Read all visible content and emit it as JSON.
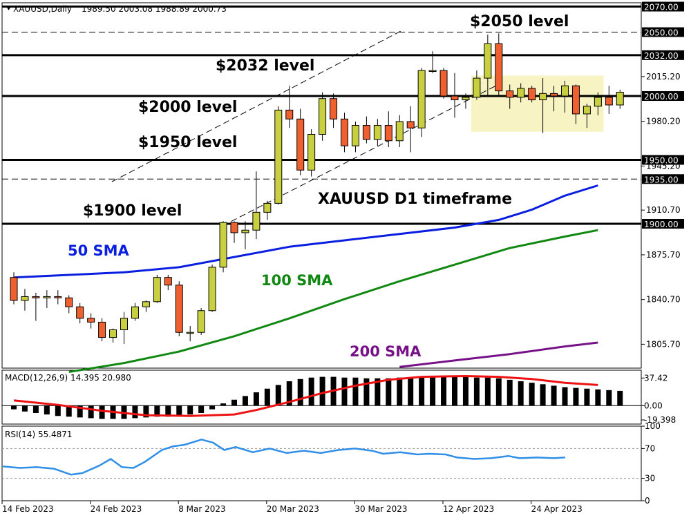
{
  "header": {
    "symbol": "XAUUSD,Daily",
    "ohlc": "1989.50 2003.08 1988.89 2000.73",
    "macd_label": "MACD(12,26,9) 14.395 20.980",
    "rsi_label": "RSI(14) 55.4871"
  },
  "annotations": {
    "l2050": "$2050 level",
    "l2032": "$2032 level",
    "l2000": "$2000 level",
    "l1950": "$1950 level",
    "l1900": "$1900 level",
    "timeframe": "XAUUSD D1 timeframe",
    "sma50": "50 SMA",
    "sma100": "100 SMA",
    "sma200": "200 SMA"
  },
  "colors": {
    "bull": "#c8d040",
    "bear": "#ee6030",
    "sma50": "#0a1ee0",
    "sma100": "#118811",
    "sma200": "#771188",
    "signal": "#ee1111",
    "rsi": "#2f8ee8",
    "zone": "#f7f3c2"
  },
  "chart_data": [
    {
      "type": "candlestick",
      "symbol": "XAUUSD",
      "timeframe": "Daily",
      "price_ylim": [
        1787,
        2073
      ],
      "y_ticks": [
        "1805.70",
        "1840.70",
        "1875.70",
        "1910.70",
        "1945.20",
        "1980.20",
        "2015.20"
      ],
      "x_ticks": [
        {
          "idx": 0,
          "label": "14 Feb 2023"
        },
        {
          "idx": 8,
          "label": "24 Feb 2023"
        },
        {
          "idx": 16,
          "label": "8 Mar 2023"
        },
        {
          "idx": 24,
          "label": "20 Mar 2023"
        },
        {
          "idx": 32,
          "label": "30 Mar 2023"
        },
        {
          "idx": 40,
          "label": "12 Apr 2023"
        },
        {
          "idx": 48,
          "label": "24 Apr 2023"
        }
      ],
      "price_levels": [
        {
          "value": 2070.0,
          "label": "2070.00",
          "style": "solid"
        },
        {
          "value": 2050.0,
          "label": "2050.00",
          "style": "dashed"
        },
        {
          "value": 2032.0,
          "label": "2032.00",
          "style": "solid"
        },
        {
          "value": 2000.0,
          "label": "2000.00",
          "style": "solid"
        },
        {
          "value": 1950.0,
          "label": "1950.00",
          "style": "solid"
        },
        {
          "value": 1935.0,
          "label": "1935.00",
          "style": "dashed"
        },
        {
          "value": 1900.0,
          "label": "1900.00",
          "style": "solid"
        }
      ],
      "candles": [
        [
          1858,
          1862,
          1837,
          1840
        ],
        [
          1840,
          1849,
          1832,
          1843
        ],
        [
          1843,
          1846,
          1824,
          1842
        ],
        [
          1842,
          1848,
          1834,
          1843
        ],
        [
          1843,
          1848,
          1837,
          1842
        ],
        [
          1842,
          1844,
          1830,
          1835
        ],
        [
          1835,
          1838,
          1822,
          1826
        ],
        [
          1826,
          1830,
          1818,
          1823
        ],
        [
          1823,
          1826,
          1808,
          1811
        ],
        [
          1811,
          1818,
          1807,
          1817
        ],
        [
          1817,
          1831,
          1806,
          1826
        ],
        [
          1826,
          1838,
          1824,
          1835
        ],
        [
          1835,
          1840,
          1831,
          1839
        ],
        [
          1839,
          1860,
          1838,
          1858
        ],
        [
          1858,
          1860,
          1848,
          1852
        ],
        [
          1852,
          1855,
          1812,
          1815
        ],
        [
          1815,
          1820,
          1808,
          1815
        ],
        [
          1815,
          1834,
          1813,
          1832
        ],
        [
          1832,
          1868,
          1831,
          1866
        ],
        [
          1866,
          1902,
          1862,
          1901
        ],
        [
          1901,
          1902,
          1885,
          1893
        ],
        [
          1893,
          1902,
          1880,
          1895
        ],
        [
          1895,
          1941,
          1888,
          1909
        ],
        [
          1909,
          1918,
          1903,
          1916
        ],
        [
          1916,
          1992,
          1915,
          1989
        ],
        [
          1989,
          2008,
          1975,
          1982
        ],
        [
          1982,
          1990,
          1938,
          1942
        ],
        [
          1942,
          1974,
          1937,
          1970
        ],
        [
          1970,
          2003,
          1965,
          1998
        ],
        [
          1998,
          2002,
          1975,
          1982
        ],
        [
          1982,
          1987,
          1956,
          1961
        ],
        [
          1961,
          1980,
          1956,
          1977
        ],
        [
          1977,
          1984,
          1963,
          1966
        ],
        [
          1966,
          1982,
          1961,
          1977
        ],
        [
          1977,
          1988,
          1960,
          1965
        ],
        [
          1965,
          1985,
          1960,
          1980
        ],
        [
          1980,
          1992,
          1956,
          1975
        ],
        [
          1975,
          2022,
          1968,
          2020
        ],
        [
          2020,
          2035,
          2018,
          2020
        ],
        [
          2020,
          2022,
          1998,
          2000
        ],
        [
          2000,
          2018,
          1983,
          1997
        ],
        [
          1997,
          2002,
          1990,
          1999
        ],
        [
          1999,
          2020,
          1997,
          2014
        ],
        [
          2014,
          2048,
          2000,
          2041
        ],
        [
          2041,
          2049,
          2000,
          2004
        ],
        [
          2004,
          2009,
          1990,
          1999
        ],
        [
          1999,
          2010,
          1995,
          2006
        ],
        [
          2006,
          2008,
          1995,
          1997
        ],
        [
          1997,
          2014,
          1971,
          2002
        ],
        [
          2002,
          2008,
          1988,
          2000
        ],
        [
          2000,
          2012,
          1987,
          2008
        ],
        [
          2008,
          2009,
          1978,
          1986
        ],
        [
          1986,
          1994,
          1975,
          1992
        ],
        [
          1992,
          2003,
          1985,
          1999
        ],
        [
          1999,
          2008,
          1986,
          1993
        ],
        [
          1993,
          2005,
          1990,
          2003
        ]
      ],
      "sma50": [
        [
          0,
          1858
        ],
        [
          5,
          1860
        ],
        [
          10,
          1862
        ],
        [
          15,
          1866
        ],
        [
          20,
          1874
        ],
        [
          25,
          1882
        ],
        [
          30,
          1887
        ],
        [
          35,
          1892
        ],
        [
          40,
          1897
        ],
        [
          44,
          1903
        ],
        [
          47,
          1911
        ],
        [
          50,
          1922
        ],
        [
          53,
          1930
        ]
      ],
      "sma100": [
        [
          5,
          1784
        ],
        [
          10,
          1791
        ],
        [
          15,
          1800
        ],
        [
          20,
          1812
        ],
        [
          25,
          1826
        ],
        [
          30,
          1841
        ],
        [
          35,
          1855
        ],
        [
          40,
          1868
        ],
        [
          45,
          1881
        ],
        [
          50,
          1890
        ],
        [
          53,
          1895
        ]
      ],
      "sma200": [
        [
          35,
          1788
        ],
        [
          40,
          1793
        ],
        [
          45,
          1798
        ],
        [
          50,
          1804
        ],
        [
          53,
          1807
        ]
      ],
      "demand_zone": {
        "start": 42,
        "end": 53,
        "from": 1972,
        "to": 2016
      }
    },
    {
      "type": "macd",
      "params": "12,26,9",
      "ylim": [
        -25,
        48
      ],
      "levels": [
        "37.42",
        "0.00",
        "-19.398"
      ],
      "histogram": [
        -5,
        -8,
        -10,
        -12,
        -14,
        -15,
        -16,
        -17,
        -18,
        -18,
        -18,
        -17,
        -16,
        -15,
        -15,
        -14,
        -12,
        -10,
        -5,
        3,
        8,
        13,
        18,
        23,
        28,
        33,
        36,
        38,
        39,
        39,
        38,
        38,
        37,
        37,
        37,
        38,
        38,
        39,
        40,
        40,
        39,
        39,
        38,
        38,
        37,
        35,
        33,
        31,
        29,
        27,
        25,
        24,
        23,
        22,
        21,
        20
      ],
      "signal": [
        [
          0,
          7
        ],
        [
          4,
          1
        ],
        [
          8,
          -7
        ],
        [
          12,
          -13
        ],
        [
          16,
          -14
        ],
        [
          20,
          -12
        ],
        [
          22,
          -6
        ],
        [
          25,
          5
        ],
        [
          28,
          17
        ],
        [
          31,
          27
        ],
        [
          34,
          35
        ],
        [
          37,
          39
        ],
        [
          41,
          40
        ],
        [
          44,
          39
        ],
        [
          47,
          36
        ],
        [
          50,
          31
        ],
        [
          53,
          28
        ]
      ]
    },
    {
      "type": "rsi",
      "params": "14",
      "ylim": [
        0,
        100
      ],
      "levels": [
        "100",
        "70",
        "30",
        "0"
      ],
      "values": [
        [
          0,
          46
        ],
        [
          3,
          44
        ],
        [
          6,
          45
        ],
        [
          9,
          43
        ],
        [
          12,
          35
        ],
        [
          14,
          37
        ],
        [
          17,
          47
        ],
        [
          19,
          56
        ],
        [
          21,
          45
        ],
        [
          23,
          44
        ],
        [
          25,
          52
        ],
        [
          28,
          68
        ],
        [
          30,
          73
        ],
        [
          32,
          75
        ],
        [
          35,
          82
        ],
        [
          37,
          78
        ],
        [
          39,
          68
        ],
        [
          41,
          72
        ],
        [
          44,
          65
        ],
        [
          47,
          70
        ],
        [
          50,
          64
        ],
        [
          53,
          67
        ],
        [
          56,
          64
        ],
        [
          59,
          68
        ],
        [
          62,
          70
        ],
        [
          65,
          67
        ],
        [
          67,
          63
        ],
        [
          70,
          65
        ],
        [
          73,
          62
        ],
        [
          75,
          63
        ],
        [
          78,
          62
        ],
        [
          80,
          58
        ],
        [
          83,
          56
        ],
        [
          86,
          57
        ],
        [
          89,
          60
        ],
        [
          91,
          57
        ],
        [
          94,
          58
        ],
        [
          97,
          57
        ],
        [
          99,
          58
        ]
      ]
    }
  ]
}
